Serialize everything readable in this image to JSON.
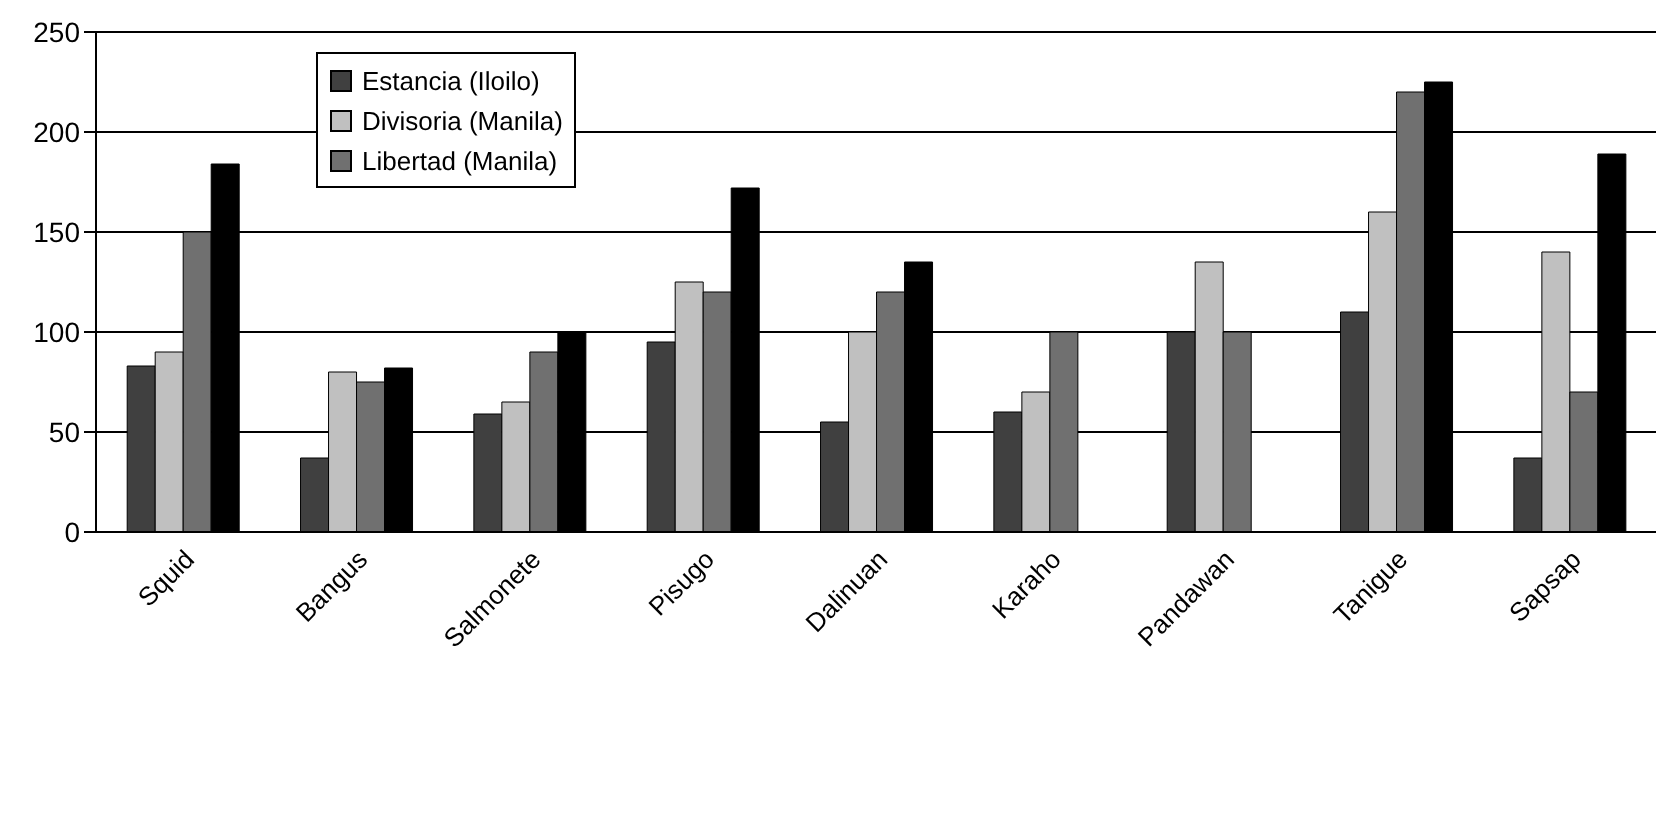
{
  "chart_data": {
    "type": "bar",
    "categories": [
      "Squid",
      "Bangus",
      "Salmonete",
      "Pisugo",
      "Dalinuan",
      "Karaho",
      "Pandawan",
      "Tanigue",
      "Sapsap"
    ],
    "series": [
      {
        "name": "Estancia (Iloilo)",
        "color": "#404040",
        "values": [
          83,
          37,
          59,
          95,
          55,
          60,
          100,
          110,
          37
        ]
      },
      {
        "name": "Divisoria (Manila)",
        "color": "#c0c0c0",
        "values": [
          90,
          80,
          65,
          125,
          100,
          70,
          135,
          160,
          140
        ]
      },
      {
        "name": "Libertad (Manila)",
        "color": "#707070",
        "values": [
          150,
          75,
          90,
          120,
          120,
          100,
          100,
          220,
          70
        ]
      },
      {
        "color": "#000000",
        "values": [
          184,
          82,
          100,
          172,
          135,
          null,
          null,
          225,
          189
        ]
      }
    ],
    "ylim": [
      0,
      250
    ],
    "yticks": [
      0,
      50,
      100,
      150,
      200,
      250
    ],
    "grid": "y",
    "legend": "top left"
  }
}
